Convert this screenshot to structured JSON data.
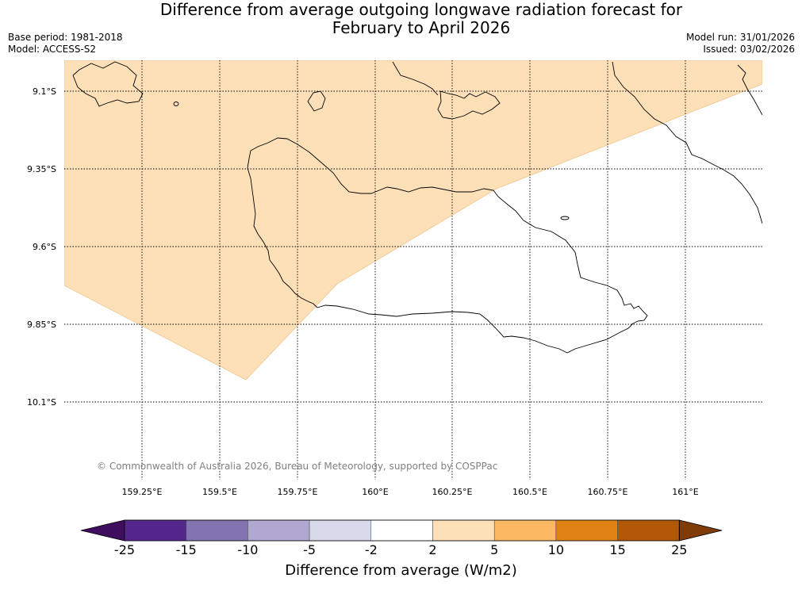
{
  "header": {
    "title_line1": "Difference from average outgoing longwave radiation forecast for",
    "title_line2": "February to April 2026",
    "base_period": "Base period: 1981-2018",
    "model": "Model: ACCESS-S2",
    "model_run": "Model run: 31/01/2026",
    "issued": "Issued: 03/02/2026"
  },
  "map": {
    "lat_labels": [
      "9.1°S",
      "9.35°S",
      "9.6°S",
      "9.85°S",
      "10.1°S"
    ],
    "lon_labels": [
      "159.25°E",
      "159.5°E",
      "159.75°E",
      "160°E",
      "160.25°E",
      "160.5°E",
      "160.75°E",
      "161°E"
    ],
    "copyright": "© Commonwealth of Australia 2026, Bureau of Meteorology, supported by COSPPac",
    "anomaly_fill_color": "#fde0b8",
    "anomaly_category": "2 to 5"
  },
  "colorbar": {
    "ticks": [
      "-25",
      "-15",
      "-10",
      "-5",
      "-2",
      "2",
      "5",
      "10",
      "15",
      "25"
    ],
    "colors": [
      "#3f0d5e",
      "#55278b",
      "#8274b0",
      "#b1a8d2",
      "#d9d9ec",
      "#ffffff",
      "#fde0b8",
      "#fdb863",
      "#e08214",
      "#b35806",
      "#7f3b08"
    ],
    "label": "Difference from average (W/m2)"
  }
}
